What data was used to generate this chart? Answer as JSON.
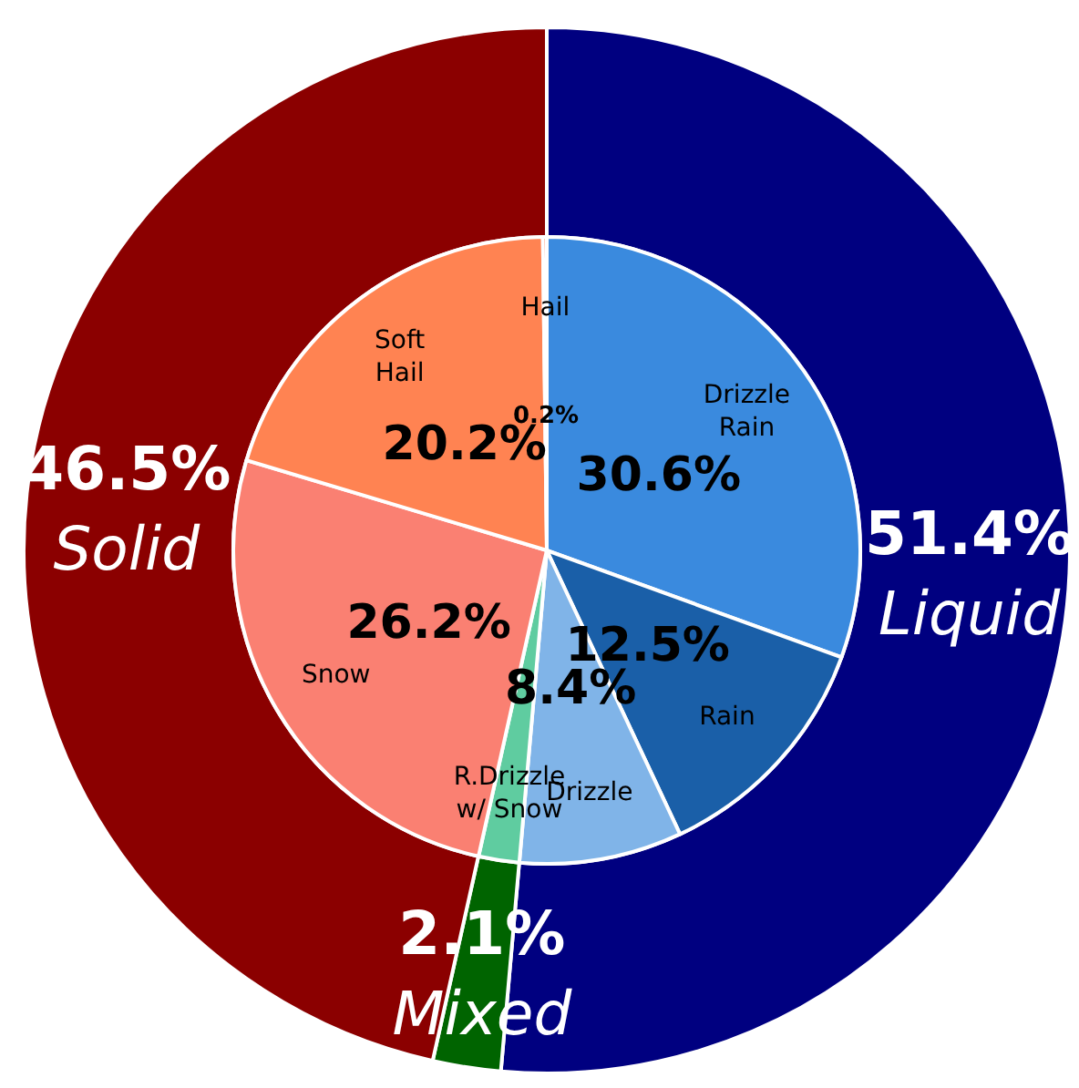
{
  "chart_data": [
    {
      "type": "donut",
      "categories": [
        "Liquid",
        "Mixed",
        "Solid"
      ],
      "values": [
        51.4,
        2.1,
        46.5
      ],
      "colors": [
        "#000080",
        "#006400",
        "#8b0000"
      ],
      "value_labels": [
        "51.4%",
        "2.1%",
        "46.5%"
      ]
    },
    {
      "type": "pie",
      "categories": [
        "Drizzle\nRain",
        "Rain",
        "Drizzle",
        "R.Drizzle\nw/ Snow",
        "Snow",
        "Soft\nHail",
        "Hail"
      ],
      "values": [
        30.6,
        12.5,
        8.4,
        2.1,
        26.2,
        20.2,
        0.2
      ],
      "colors": [
        "#3a8ade",
        "#1a5fa8",
        "#80b4e8",
        "#5fcca0",
        "#fa8072",
        "#ff8352",
        "#ff4500"
      ],
      "value_labels": [
        "30.6%",
        "12.5%",
        "8.4%",
        null,
        "26.2%",
        "20.2%",
        "0.2%"
      ]
    }
  ]
}
